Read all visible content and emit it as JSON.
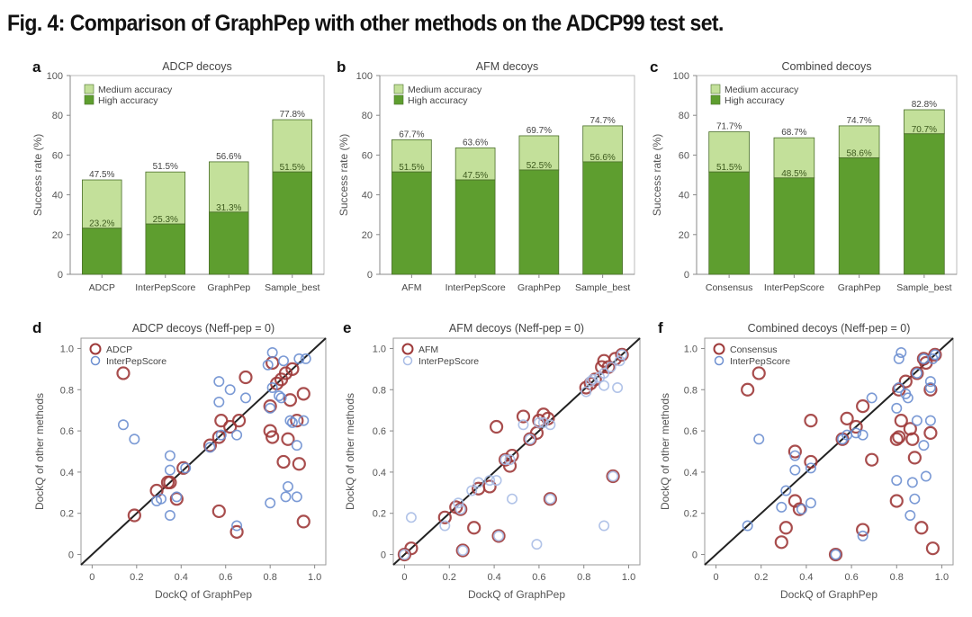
{
  "figure": {
    "title": "Fig. 4: Comparison of GraphPep with other methods on the ADCP99 test set."
  },
  "colors": {
    "medium": "#c3e09a",
    "high": "#5e9e2f",
    "bar_edge": "#4a6e2a",
    "method_red": "#9e3a3a",
    "interpep_blue": "#6d8fd0",
    "interpep_blue_light": "#a9bde6",
    "diagonal": "#222222",
    "axis": "#888888"
  },
  "chart_data": [
    {
      "panel": "a",
      "type": "bar",
      "stacked": true,
      "title": "ADCP decoys",
      "xlabel": "",
      "ylabel": "Success rate (%)",
      "ylim": [
        0,
        100
      ],
      "yticks": [
        0,
        20,
        40,
        60,
        80,
        100
      ],
      "categories": [
        "ADCP",
        "InterPepScore",
        "GraphPep",
        "Sample_best"
      ],
      "series": [
        {
          "name": "High accuracy",
          "values": [
            23.2,
            25.3,
            31.3,
            51.5
          ],
          "labels": [
            "23.2%",
            "25.3%",
            "31.3%",
            "51.5%"
          ]
        },
        {
          "name": "Medium accuracy",
          "totals": [
            47.5,
            51.5,
            56.6,
            77.8
          ],
          "labels": [
            "47.5%",
            "51.5%",
            "56.6%",
            "77.8%"
          ]
        }
      ],
      "legend": [
        "Medium accuracy",
        "High accuracy"
      ],
      "legend_position": "top-left"
    },
    {
      "panel": "b",
      "type": "bar",
      "stacked": true,
      "title": "AFM decoys",
      "xlabel": "",
      "ylabel": "Success rate (%)",
      "ylim": [
        0,
        100
      ],
      "yticks": [
        0,
        20,
        40,
        60,
        80,
        100
      ],
      "categories": [
        "AFM",
        "InterPepScore",
        "GraphPep",
        "Sample_best"
      ],
      "series": [
        {
          "name": "High accuracy",
          "values": [
            51.5,
            47.5,
            52.5,
            56.6
          ],
          "labels": [
            "51.5%",
            "47.5%",
            "52.5%",
            "56.6%"
          ]
        },
        {
          "name": "Medium accuracy",
          "totals": [
            67.7,
            63.6,
            69.7,
            74.7
          ],
          "labels": [
            "67.7%",
            "63.6%",
            "69.7%",
            "74.7%"
          ]
        }
      ],
      "legend": [
        "Medium accuracy",
        "High accuracy"
      ],
      "legend_position": "top-left"
    },
    {
      "panel": "c",
      "type": "bar",
      "stacked": true,
      "title": "Combined decoys",
      "xlabel": "",
      "ylabel": "Success rate (%)",
      "ylim": [
        0,
        100
      ],
      "yticks": [
        0,
        20,
        40,
        60,
        80,
        100
      ],
      "categories": [
        "Consensus",
        "InterPepScore",
        "GraphPep",
        "Sample_best"
      ],
      "series": [
        {
          "name": "High accuracy",
          "values": [
            51.5,
            48.5,
            58.6,
            70.7
          ],
          "labels": [
            "51.5%",
            "48.5%",
            "58.6%",
            "70.7%"
          ]
        },
        {
          "name": "Medium accuracy",
          "totals": [
            71.7,
            68.7,
            74.7,
            82.8
          ],
          "labels": [
            "71.7%",
            "68.7%",
            "74.7%",
            "82.8%"
          ]
        }
      ],
      "legend": [
        "Medium accuracy",
        "High accuracy"
      ],
      "legend_position": "top-left"
    },
    {
      "panel": "d",
      "type": "scatter",
      "title": "ADCP decoys (Neff-pep = 0)",
      "xlabel": "DockQ of GraphPep",
      "ylabel": "DockQ of other methods",
      "xlim": [
        -0.05,
        1.05
      ],
      "ylim": [
        -0.05,
        1.05
      ],
      "xticks": [
        "0",
        "0.2",
        "0.4",
        "0.6",
        "0.8",
        "1.0"
      ],
      "yticks": [
        "0",
        "0.2",
        "0.4",
        "0.6",
        "0.8",
        "1.0"
      ],
      "diagonal": true,
      "legend_position": "top-left",
      "series": [
        {
          "name": "ADCP",
          "color_key": "method_red",
          "points": [
            [
              0.14,
              0.88
            ],
            [
              0.19,
              0.19
            ],
            [
              0.29,
              0.31
            ],
            [
              0.34,
              0.35
            ],
            [
              0.35,
              0.35
            ],
            [
              0.38,
              0.27
            ],
            [
              0.41,
              0.42
            ],
            [
              0.53,
              0.53
            ],
            [
              0.57,
              0.57
            ],
            [
              0.58,
              0.65
            ],
            [
              0.62,
              0.62
            ],
            [
              0.66,
              0.65
            ],
            [
              0.69,
              0.86
            ],
            [
              0.57,
              0.21
            ],
            [
              0.65,
              0.11
            ],
            [
              0.8,
              0.6
            ],
            [
              0.81,
              0.57
            ],
            [
              0.81,
              0.93
            ],
            [
              0.83,
              0.83
            ],
            [
              0.85,
              0.85
            ],
            [
              0.87,
              0.88
            ],
            [
              0.88,
              0.56
            ],
            [
              0.89,
              0.75
            ],
            [
              0.9,
              0.9
            ],
            [
              0.92,
              0.65
            ],
            [
              0.86,
              0.45
            ],
            [
              0.93,
              0.44
            ],
            [
              0.95,
              0.78
            ],
            [
              0.95,
              0.16
            ],
            [
              0.8,
              0.72
            ]
          ]
        },
        {
          "name": "InterPepScore",
          "color_key": "interpep_blue",
          "points": [
            [
              0.14,
              0.63
            ],
            [
              0.19,
              0.56
            ],
            [
              0.29,
              0.26
            ],
            [
              0.31,
              0.27
            ],
            [
              0.35,
              0.48
            ],
            [
              0.35,
              0.41
            ],
            [
              0.35,
              0.19
            ],
            [
              0.38,
              0.28
            ],
            [
              0.42,
              0.42
            ],
            [
              0.53,
              0.52
            ],
            [
              0.57,
              0.84
            ],
            [
              0.57,
              0.74
            ],
            [
              0.58,
              0.58
            ],
            [
              0.62,
              0.8
            ],
            [
              0.65,
              0.58
            ],
            [
              0.69,
              0.76
            ],
            [
              0.65,
              0.14
            ],
            [
              0.79,
              0.92
            ],
            [
              0.81,
              0.98
            ],
            [
              0.81,
              0.81
            ],
            [
              0.84,
              0.77
            ],
            [
              0.85,
              0.76
            ],
            [
              0.86,
              0.94
            ],
            [
              0.8,
              0.71
            ],
            [
              0.8,
              0.25
            ],
            [
              0.87,
              0.28
            ],
            [
              0.88,
              0.33
            ],
            [
              0.89,
              0.65
            ],
            [
              0.9,
              0.64
            ],
            [
              0.92,
              0.53
            ],
            [
              0.92,
              0.28
            ],
            [
              0.93,
              0.95
            ],
            [
              0.96,
              0.95
            ],
            [
              0.95,
              0.65
            ]
          ]
        }
      ]
    },
    {
      "panel": "e",
      "type": "scatter",
      "title": "AFM decoys (Neff-pep = 0)",
      "xlabel": "DockQ of GraphPep",
      "ylabel": "DockQ of other methods",
      "xlim": [
        -0.05,
        1.05
      ],
      "ylim": [
        -0.05,
        1.05
      ],
      "xticks": [
        "0",
        "0.2",
        "0.4",
        "0.6",
        "0.8",
        "1.0"
      ],
      "yticks": [
        "0",
        "0.2",
        "0.4",
        "0.6",
        "0.8",
        "1.0"
      ],
      "diagonal": true,
      "legend_position": "top-left",
      "series": [
        {
          "name": "AFM",
          "color_key": "method_red",
          "points": [
            [
              0.0,
              0.0
            ],
            [
              0.03,
              0.03
            ],
            [
              0.18,
              0.18
            ],
            [
              0.23,
              0.23
            ],
            [
              0.25,
              0.22
            ],
            [
              0.26,
              0.02
            ],
            [
              0.31,
              0.13
            ],
            [
              0.33,
              0.32
            ],
            [
              0.38,
              0.33
            ],
            [
              0.41,
              0.62
            ],
            [
              0.42,
              0.09
            ],
            [
              0.45,
              0.46
            ],
            [
              0.47,
              0.43
            ],
            [
              0.48,
              0.48
            ],
            [
              0.53,
              0.67
            ],
            [
              0.56,
              0.56
            ],
            [
              0.59,
              0.59
            ],
            [
              0.6,
              0.65
            ],
            [
              0.62,
              0.68
            ],
            [
              0.64,
              0.66
            ],
            [
              0.65,
              0.27
            ],
            [
              0.81,
              0.81
            ],
            [
              0.83,
              0.83
            ],
            [
              0.85,
              0.85
            ],
            [
              0.88,
              0.91
            ],
            [
              0.89,
              0.94
            ],
            [
              0.91,
              0.91
            ],
            [
              0.93,
              0.38
            ],
            [
              0.94,
              0.95
            ],
            [
              0.97,
              0.97
            ]
          ]
        },
        {
          "name": "InterPepScore",
          "color_key": "interpep_blue_light",
          "points": [
            [
              0.0,
              0.0
            ],
            [
              0.03,
              0.18
            ],
            [
              0.18,
              0.14
            ],
            [
              0.24,
              0.25
            ],
            [
              0.25,
              0.22
            ],
            [
              0.26,
              0.02
            ],
            [
              0.3,
              0.31
            ],
            [
              0.33,
              0.35
            ],
            [
              0.38,
              0.36
            ],
            [
              0.41,
              0.36
            ],
            [
              0.42,
              0.09
            ],
            [
              0.45,
              0.46
            ],
            [
              0.47,
              0.46
            ],
            [
              0.48,
              0.27
            ],
            [
              0.53,
              0.63
            ],
            [
              0.56,
              0.56
            ],
            [
              0.59,
              0.05
            ],
            [
              0.6,
              0.64
            ],
            [
              0.62,
              0.64
            ],
            [
              0.65,
              0.63
            ],
            [
              0.65,
              0.27
            ],
            [
              0.81,
              0.79
            ],
            [
              0.83,
              0.84
            ],
            [
              0.84,
              0.85
            ],
            [
              0.87,
              0.86
            ],
            [
              0.89,
              0.88
            ],
            [
              0.89,
              0.82
            ],
            [
              0.89,
              0.14
            ],
            [
              0.92,
              0.91
            ],
            [
              0.93,
              0.38
            ],
            [
              0.95,
              0.81
            ],
            [
              0.96,
              0.94
            ],
            [
              0.97,
              0.97
            ]
          ]
        }
      ]
    },
    {
      "panel": "f",
      "type": "scatter",
      "title": "Combined decoys (Neff-pep = 0)",
      "xlabel": "DockQ of GraphPep",
      "ylabel": "DockQ of other methods",
      "xlim": [
        -0.05,
        1.05
      ],
      "ylim": [
        -0.05,
        1.05
      ],
      "xticks": [
        "0",
        "0.2",
        "0.4",
        "0.6",
        "0.8",
        "1.0"
      ],
      "yticks": [
        "0",
        "0.2",
        "0.4",
        "0.6",
        "0.8",
        "1.0"
      ],
      "diagonal": true,
      "legend_position": "top-left",
      "series": [
        {
          "name": "Consensus",
          "color_key": "method_red",
          "points": [
            [
              0.14,
              0.8
            ],
            [
              0.19,
              0.88
            ],
            [
              0.29,
              0.06
            ],
            [
              0.31,
              0.13
            ],
            [
              0.35,
              0.5
            ],
            [
              0.35,
              0.26
            ],
            [
              0.37,
              0.22
            ],
            [
              0.42,
              0.65
            ],
            [
              0.42,
              0.45
            ],
            [
              0.53,
              0.0
            ],
            [
              0.56,
              0.56
            ],
            [
              0.58,
              0.66
            ],
            [
              0.62,
              0.62
            ],
            [
              0.65,
              0.72
            ],
            [
              0.65,
              0.12
            ],
            [
              0.69,
              0.46
            ],
            [
              0.8,
              0.56
            ],
            [
              0.8,
              0.26
            ],
            [
              0.81,
              0.57
            ],
            [
              0.81,
              0.8
            ],
            [
              0.82,
              0.65
            ],
            [
              0.84,
              0.84
            ],
            [
              0.86,
              0.61
            ],
            [
              0.87,
              0.56
            ],
            [
              0.88,
              0.47
            ],
            [
              0.89,
              0.88
            ],
            [
              0.91,
              0.13
            ],
            [
              0.92,
              0.95
            ],
            [
              0.93,
              0.93
            ],
            [
              0.95,
              0.59
            ],
            [
              0.95,
              0.8
            ],
            [
              0.96,
              0.03
            ],
            [
              0.97,
              0.97
            ]
          ]
        },
        {
          "name": "InterPepScore",
          "color_key": "interpep_blue",
          "points": [
            [
              0.14,
              0.14
            ],
            [
              0.19,
              0.56
            ],
            [
              0.29,
              0.23
            ],
            [
              0.31,
              0.31
            ],
            [
              0.35,
              0.48
            ],
            [
              0.35,
              0.41
            ],
            [
              0.38,
              0.22
            ],
            [
              0.42,
              0.42
            ],
            [
              0.42,
              0.25
            ],
            [
              0.53,
              0.0
            ],
            [
              0.56,
              0.56
            ],
            [
              0.58,
              0.58
            ],
            [
              0.62,
              0.59
            ],
            [
              0.65,
              0.58
            ],
            [
              0.65,
              0.09
            ],
            [
              0.69,
              0.76
            ],
            [
              0.8,
              0.71
            ],
            [
              0.8,
              0.36
            ],
            [
              0.81,
              0.95
            ],
            [
              0.82,
              0.98
            ],
            [
              0.81,
              0.81
            ],
            [
              0.84,
              0.78
            ],
            [
              0.85,
              0.76
            ],
            [
              0.87,
              0.35
            ],
            [
              0.88,
              0.27
            ],
            [
              0.86,
              0.19
            ],
            [
              0.89,
              0.65
            ],
            [
              0.89,
              0.88
            ],
            [
              0.92,
              0.53
            ],
            [
              0.93,
              0.38
            ],
            [
              0.92,
              0.95
            ],
            [
              0.95,
              0.84
            ],
            [
              0.95,
              0.81
            ],
            [
              0.95,
              0.65
            ],
            [
              0.96,
              0.95
            ],
            [
              0.97,
              0.97
            ]
          ]
        }
      ]
    }
  ]
}
